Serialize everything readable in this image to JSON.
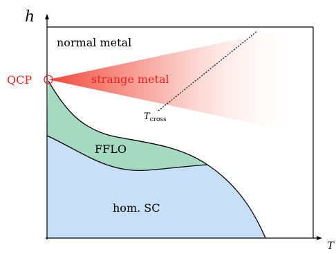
{
  "axes": {
    "y_label": "h",
    "x_label": "T"
  },
  "regions": {
    "normal_metal": "normal metal",
    "strange_metal": "strange metal",
    "fflo": "FFLO",
    "hom_sc": "hom. SC"
  },
  "qcp": {
    "label": "QCP"
  },
  "crossover": {
    "label_main": "T",
    "label_sub": "cross"
  },
  "colors": {
    "fflo_fill": "#a6d9c1",
    "sc_fill": "#c7e0f8",
    "strange_metal": "#f03a2a",
    "qcp": "#e8201a",
    "line": "#000000"
  }
}
